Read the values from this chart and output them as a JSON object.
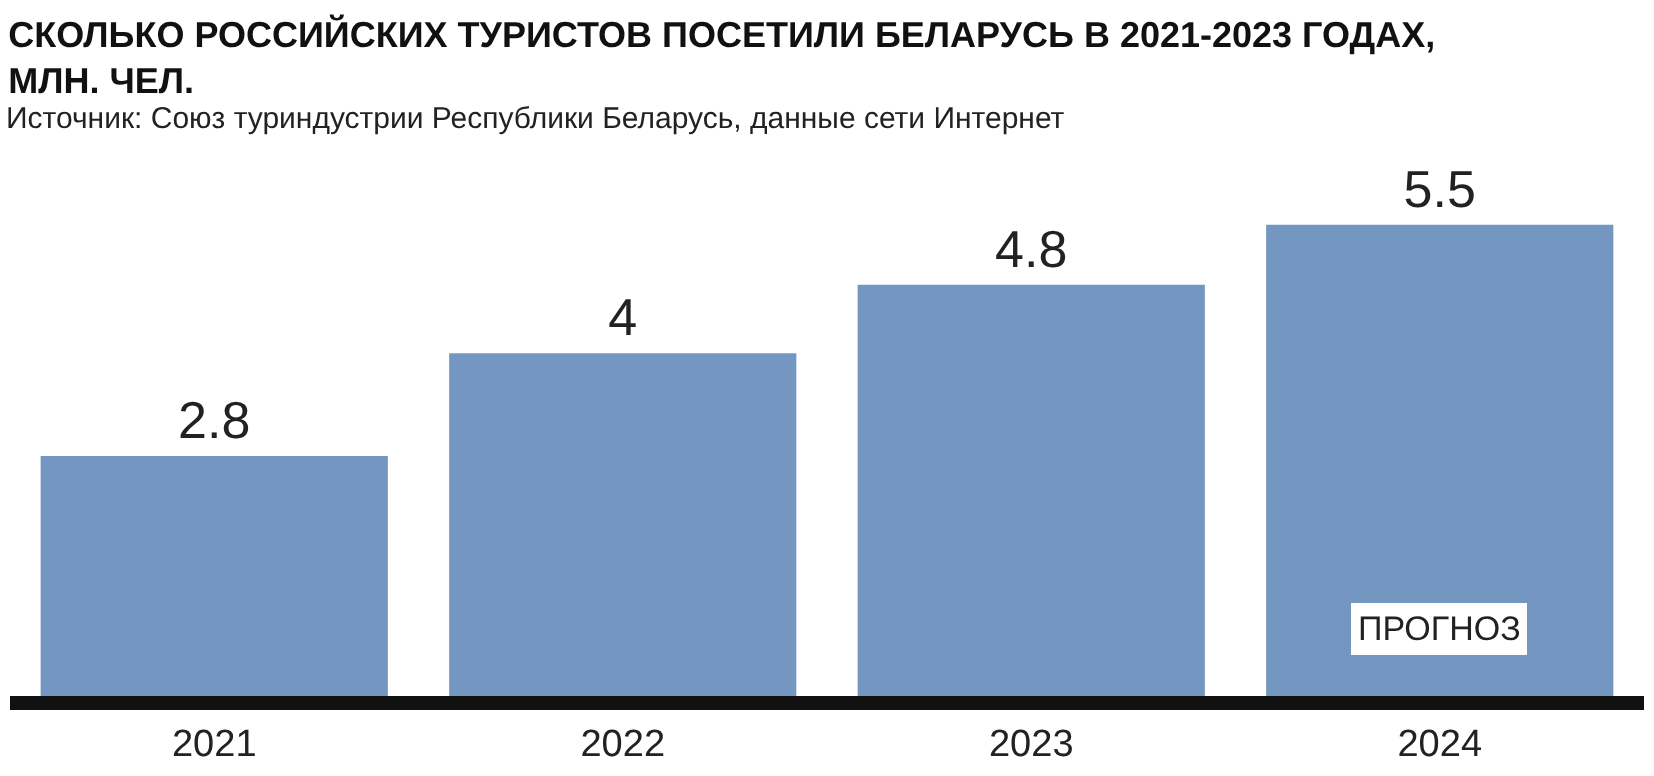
{
  "chart_data": {
    "type": "bar",
    "title": "СКОЛЬКО РОССИЙСКИХ ТУРИСТОВ ПОСЕТИЛИ БЕЛАРУСЬ В 2021-2023 ГОДАХ,\nМЛН. ЧЕЛ.",
    "categories": [
      "2021",
      "2022",
      "2023",
      "2024"
    ],
    "values": [
      2.8,
      4,
      4.8,
      5.5
    ],
    "color": "#7397c0",
    "data_labels": true,
    "annotations": [
      "Источник: Союз туриндустрии Республики Беларусь, данные сети Интернет",
      "ПРОГНОЗ"
    ]
  }
}
